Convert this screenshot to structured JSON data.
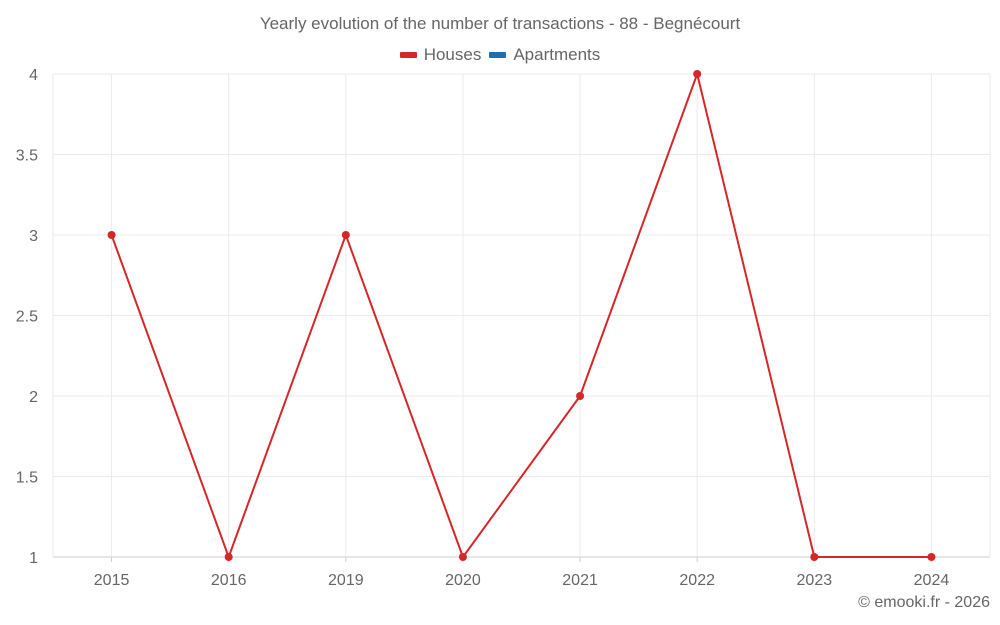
{
  "title": "Yearly evolution of the number of transactions - 88 - Begnécourt",
  "legend": [
    {
      "label": "Houses",
      "color": "#d62728"
    },
    {
      "label": "Apartments",
      "color": "#1f6fa8"
    }
  ],
  "credit": "© emooki.fr - 2026",
  "chart_data": {
    "type": "line",
    "title": "Yearly evolution of the number of transactions - 88 - Begnécourt",
    "xlabel": "",
    "ylabel": "",
    "categories": [
      "2015",
      "2016",
      "2019",
      "2020",
      "2021",
      "2022",
      "2023",
      "2024"
    ],
    "series": [
      {
        "name": "Houses",
        "color": "#d62728",
        "values": [
          3,
          1,
          3,
          1,
          2,
          4,
          1,
          1
        ]
      },
      {
        "name": "Apartments",
        "color": "#1f6fa8",
        "values": []
      }
    ],
    "yticks": [
      "1",
      "1.5",
      "2",
      "2.5",
      "3",
      "3.5",
      "4"
    ],
    "ylim": [
      1,
      4
    ],
    "grid": true,
    "legend_position": "top"
  }
}
